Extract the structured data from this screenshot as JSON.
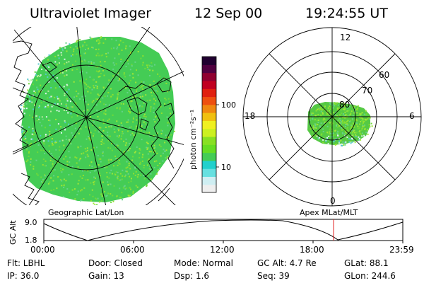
{
  "header": {
    "instrument": "Ultraviolet Imager",
    "date": "12 Sep 00",
    "time": "19:24:55 UT"
  },
  "colorbar": {
    "unit_label": "photon cm⁻²s⁻¹",
    "tick_100": "100",
    "tick_10": "10",
    "colors": [
      "#eeeeee",
      "#cfeef2",
      "#66e0e0",
      "#22d0cc",
      "#44cc55",
      "#66dd22",
      "#88e022",
      "#ccf020",
      "#f0f020",
      "#f0c010",
      "#f08810",
      "#ee5010",
      "#e02010",
      "#c00020",
      "#900030",
      "#500040",
      "#200030"
    ]
  },
  "left_panel": {
    "caption": "Geographic Lat/Lon",
    "fill_colors": [
      "#44cc55",
      "#6fda3a",
      "#8fe030",
      "#a0e638",
      "#66d28a",
      "#b9ec9c",
      "#e0f4ee",
      "#55c9cc"
    ]
  },
  "right_panel": {
    "caption": "Apex  MLat/MLT",
    "mlt_12": "12",
    "mlt_18": "18",
    "mlt_6": "6",
    "mlt_0": "0",
    "lat_60": "60",
    "lat_70": "70",
    "lat_80": "80"
  },
  "timeline": {
    "y_axis_label": "GC Alt",
    "y_max": "9.0",
    "y_min": "1.8",
    "x_ticks": [
      "00:00",
      "06:00",
      "12:00",
      "18:00",
      "23:59"
    ],
    "current_marker_color": "#e02020"
  },
  "info": {
    "row1": [
      "Flt: LBHL",
      "Door: Closed",
      "Mode: Normal",
      "GC Alt: 4.7 Re",
      "GLat: 88.1"
    ],
    "row2": [
      "IP: 36.0",
      "Gain: 13",
      "Dsp:   1.6",
      "Seq: 39",
      "GLon: 244.6"
    ]
  }
}
